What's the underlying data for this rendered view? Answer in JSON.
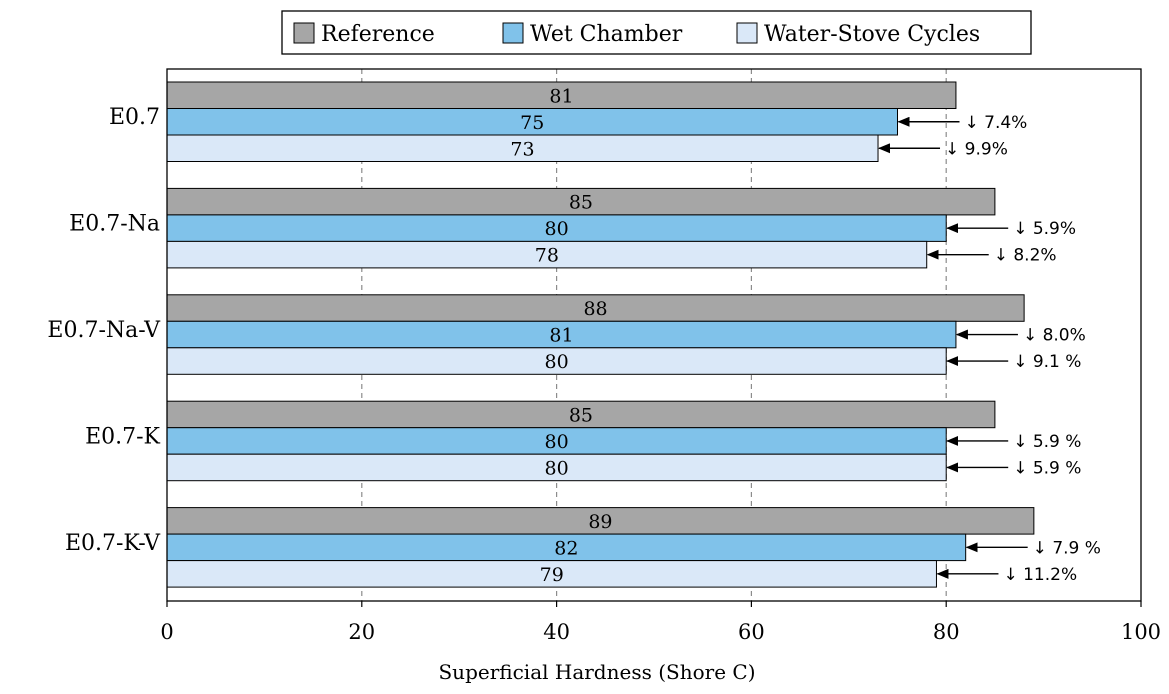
{
  "chart_data": {
    "type": "bar",
    "orientation": "horizontal",
    "categories": [
      "E0.7",
      "E0.7-Na",
      "E0.7-Na-V",
      "E0.7-K",
      "E0.7-K-V"
    ],
    "series": [
      {
        "name": "Reference",
        "color": "#a6a6a6",
        "values": [
          81,
          85,
          88,
          85,
          89
        ]
      },
      {
        "name": "Wet Chamber",
        "color": "#80c2ea",
        "values": [
          75,
          80,
          81,
          80,
          82
        ]
      },
      {
        "name": "Water-Stove Cycles",
        "color": "#dae8f8",
        "values": [
          73,
          78,
          80,
          80,
          79
        ]
      }
    ],
    "annotations": {
      "Wet Chamber": [
        "↓ 7.4%",
        "↓ 5.9%",
        "↓ 8.0%",
        "↓ 5.9 %",
        "↓ 7.9 %"
      ],
      "Water-Stove Cycles": [
        "↓ 9.9%",
        "↓ 8.2%",
        "↓ 9.1 %",
        "↓ 5.9 %",
        "↓ 11.2%"
      ]
    },
    "xlabel": "Superficial Hardness (Shore C)",
    "ylabel": "",
    "xlim": [
      0,
      100
    ],
    "xticks": [
      "0",
      "20",
      "40",
      "60",
      "80",
      "100"
    ],
    "grid": "vertical-dashed",
    "legend_position": "top"
  }
}
